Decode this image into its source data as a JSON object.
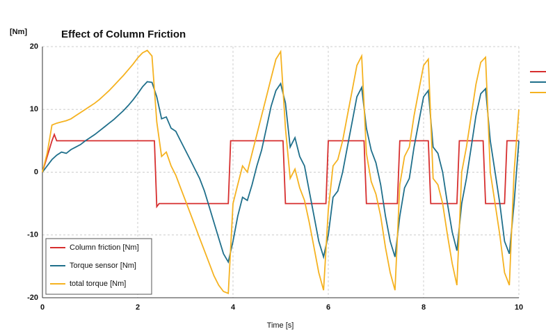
{
  "chart_data": {
    "type": "line",
    "title": "Effect of Column Friction",
    "y_label": "[Nm]",
    "x_label": "Time [s]",
    "xlim": [
      0,
      10
    ],
    "ylim": [
      -20,
      20
    ],
    "xticks": [
      0,
      2,
      4,
      6,
      8,
      10
    ],
    "yticks": [
      20,
      10,
      0,
      -10,
      -20
    ],
    "grid": true,
    "legend": "lower left",
    "x": [
      0,
      0.1,
      0.2,
      0.3,
      0.4,
      0.5,
      0.6,
      0.7,
      0.8,
      0.9,
      1,
      1.1,
      1.2,
      1.3,
      1.4,
      1.5,
      1.6,
      1.7,
      1.8,
      1.9,
      2,
      2.1,
      2.2,
      2.3,
      2.4,
      2.5,
      2.6,
      2.7,
      2.8,
      2.9,
      3,
      3.1,
      3.2,
      3.3,
      3.4,
      3.5,
      3.6,
      3.7,
      3.8,
      3.9,
      4,
      4.1,
      4.2,
      4.3,
      4.4,
      4.5,
      4.6,
      4.7,
      4.8,
      4.9,
      5,
      5.1,
      5.2,
      5.3,
      5.4,
      5.5,
      5.6,
      5.7,
      5.8,
      5.9,
      6,
      6.1,
      6.2,
      6.3,
      6.4,
      6.5,
      6.6,
      6.7,
      6.8,
      6.9,
      7,
      7.1,
      7.2,
      7.3,
      7.4,
      7.5,
      7.6,
      7.7,
      7.8,
      7.9,
      8,
      8.1,
      8.2,
      8.3,
      8.4,
      8.5,
      8.6,
      8.7,
      8.8,
      8.9,
      9,
      9.1,
      9.2,
      9.3,
      9.4,
      9.5,
      9.6,
      9.7,
      9.8,
      9.9,
      10
    ],
    "series": [
      {
        "name": "Column friction [Nm]",
        "color": "#d62e2e",
        "x": [
          0,
          0.2,
          0.25,
          0.3,
          2.35,
          2.4,
          2.45,
          3.9,
          3.95,
          5.05,
          5.1,
          5.95,
          6.0,
          6.75,
          6.8,
          7.45,
          7.5,
          8.1,
          8.15,
          8.7,
          8.75,
          9.25,
          9.3,
          9.7,
          9.75,
          10
        ],
        "values": [
          0,
          5,
          6,
          5,
          5,
          -5.5,
          -5,
          -5,
          5,
          5,
          -5,
          -5,
          5,
          5,
          -5,
          -5,
          5,
          5,
          -5,
          -5,
          5,
          5,
          -5,
          -5,
          5,
          5
        ]
      },
      {
        "name": "Torque sensor [Nm]",
        "color": "#1f6f8b",
        "values": [
          0,
          1,
          2,
          2.7,
          3.2,
          3,
          3.6,
          4,
          4.4,
          5,
          5.5,
          6,
          6.6,
          7.2,
          7.8,
          8.4,
          9.1,
          9.8,
          10.6,
          11.5,
          12.5,
          13.6,
          14.4,
          14.3,
          12,
          8.5,
          8.8,
          7,
          6.5,
          5,
          3.5,
          2,
          0.5,
          -1,
          -3,
          -5.5,
          -8,
          -10.5,
          -13,
          -14.3,
          -11,
          -7,
          -4,
          -4.5,
          -2,
          1,
          3.5,
          7,
          10.5,
          13,
          14.1,
          11,
          4,
          5.5,
          2.5,
          1,
          -3,
          -7,
          -11,
          -13.5,
          -10,
          -4,
          -3,
          0,
          4,
          8,
          12,
          13.5,
          7,
          3.5,
          1.5,
          -2,
          -7,
          -11,
          -13.5,
          -7,
          -2.5,
          -1,
          4,
          8,
          12,
          13,
          4,
          3,
          0,
          -5,
          -9.5,
          -12.5,
          -5,
          -1,
          4,
          9,
          12.5,
          13.3,
          5,
          0,
          -5,
          -11,
          -13,
          -5,
          5
        ]
      },
      {
        "name": "total torque [Nm]",
        "color": "#f5b220",
        "values": [
          0,
          3,
          7.5,
          7.8,
          8,
          8.2,
          8.5,
          9,
          9.5,
          10,
          10.5,
          11,
          11.6,
          12.3,
          13,
          13.8,
          14.6,
          15.4,
          16.3,
          17.2,
          18.2,
          19,
          19.4,
          18.5,
          8,
          2.5,
          3.2,
          1,
          -0.5,
          -2.5,
          -4.5,
          -6.5,
          -8.5,
          -10.5,
          -12.5,
          -14.5,
          -16.5,
          -18,
          -19,
          -19.3,
          -5,
          -2,
          1,
          0,
          3,
          6,
          9,
          12,
          15,
          18,
          19.2,
          7,
          -1,
          0.5,
          -2.5,
          -4.5,
          -8,
          -12,
          -16,
          -18.8,
          -6,
          1,
          2,
          5,
          9,
          13,
          17,
          18.5,
          3,
          -1.5,
          -3.5,
          -7,
          -12,
          -16,
          -18.8,
          -2,
          2.5,
          4,
          9,
          13,
          17,
          18,
          -1,
          -2,
          -5,
          -10,
          -14.5,
          -18,
          0,
          4,
          9,
          14,
          17.5,
          18.3,
          0,
          -5,
          -10,
          -16,
          -18,
          0,
          10
        ]
      }
    ]
  }
}
